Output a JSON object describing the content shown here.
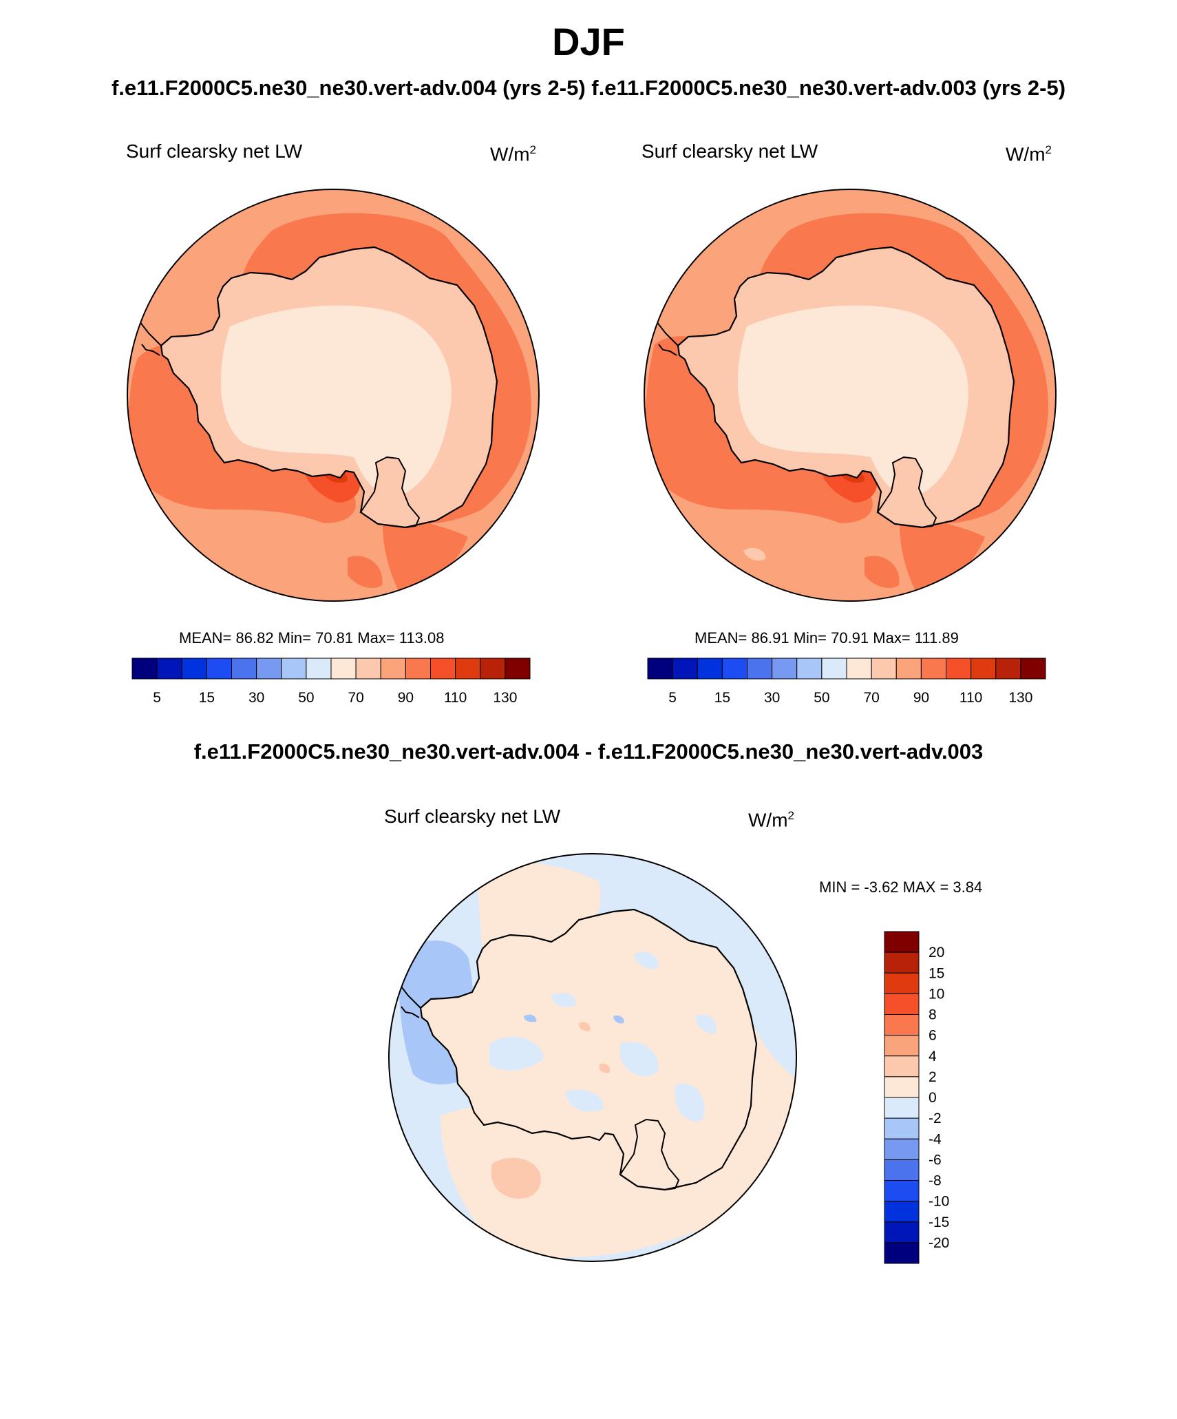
{
  "season": "DJF",
  "case_titles": "f.e11.F2000C5.ne30_ne30.vert-adv.004 (yrs 2-5)  f.e11.F2000C5.ne30_ne30.vert-adv.003 (yrs 2-5)",
  "panels": [
    {
      "variable": "Surf clearsky net LW",
      "units_base": "W/m",
      "units_exp": "2",
      "stats": "MEAN=  86.82  Min=  70.81  Max= 113.08"
    },
    {
      "variable": "Surf clearsky net LW",
      "units_base": "W/m",
      "units_exp": "2",
      "stats": "MEAN=  86.91  Min=  70.91  Max= 111.89"
    }
  ],
  "main_colorbar": {
    "colors": [
      "#00007f",
      "#0016b8",
      "#0033dd",
      "#1d4cf2",
      "#4c73ee",
      "#7799f0",
      "#a9c6f8",
      "#dbeafb",
      "#fde7d6",
      "#fcc9ae",
      "#fba47c",
      "#f9784e",
      "#f5502a",
      "#e03a0f",
      "#b82208",
      "#800000"
    ],
    "labels": [
      "5",
      "15",
      "30",
      "50",
      "70",
      "90",
      "110",
      "130"
    ]
  },
  "diff_panel": {
    "title": "f.e11.F2000C5.ne30_ne30.vert-adv.004 - f.e11.F2000C5.ne30_ne30.vert-adv.003",
    "variable": "Surf clearsky net LW",
    "units_base": "W/m",
    "units_exp": "2",
    "stats": "MIN =  -3.62 MAX =   3.84"
  },
  "diff_colorbar": {
    "colors": [
      "#800000",
      "#b82208",
      "#e03a0f",
      "#f5502a",
      "#f9784e",
      "#fba47c",
      "#fcc9ae",
      "#fde7d6",
      "#dbeafb",
      "#a9c6f8",
      "#7799f0",
      "#4c73ee",
      "#1d4cf2",
      "#0033dd",
      "#0016b8",
      "#00007f"
    ],
    "labels": [
      "20",
      "15",
      "10",
      "8",
      "6",
      "4",
      "2",
      "0",
      "-2",
      "-4",
      "-6",
      "-8",
      "-10",
      "-15",
      "-20"
    ]
  }
}
